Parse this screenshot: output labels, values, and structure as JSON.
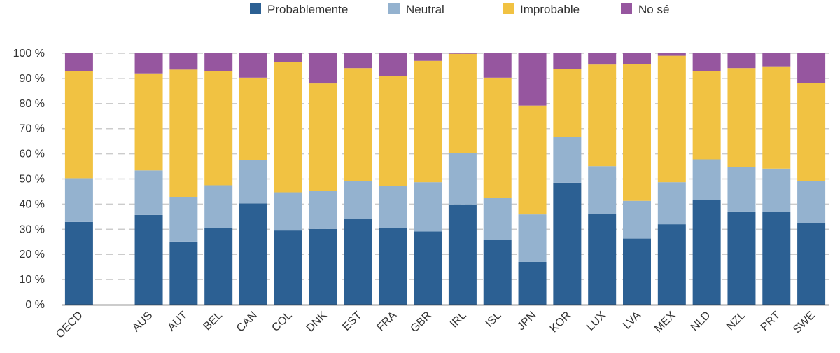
{
  "chart_data": {
    "type": "bar",
    "stacked": true,
    "categories": [
      "OECD",
      "",
      "AUS",
      "AUT",
      "BEL",
      "CAN",
      "COL",
      "DNK",
      "EST",
      "FRA",
      "GBR",
      "IRL",
      "ISL",
      "JPN",
      "KOR",
      "LUX",
      "LVA",
      "MEX",
      "NLD",
      "NZL",
      "PRT",
      "SWE"
    ],
    "series": [
      {
        "name": "Probablemente",
        "color": "#2c6093",
        "values": [
          32.9,
          null,
          35.7,
          25.1,
          30.5,
          40.3,
          29.5,
          30.1,
          34.2,
          30.6,
          29.1,
          39.9,
          25.9,
          17.0,
          48.5,
          36.2,
          26.3,
          32.0,
          41.6,
          37.1,
          36.8,
          32.4
        ]
      },
      {
        "name": "Neutral",
        "color": "#94b2cf",
        "values": [
          17.4,
          null,
          17.7,
          17.8,
          17.0,
          17.3,
          15.2,
          15.1,
          15.1,
          16.5,
          19.6,
          20.4,
          16.5,
          18.9,
          18.2,
          18.9,
          15.0,
          16.7,
          16.2,
          17.5,
          17.3,
          16.7
        ]
      },
      {
        "name": "Improbable",
        "color": "#f1c242",
        "values": [
          42.7,
          null,
          38.6,
          50.6,
          45.4,
          32.7,
          51.8,
          42.8,
          44.8,
          43.8,
          48.3,
          39.5,
          47.9,
          43.3,
          26.9,
          40.4,
          54.5,
          50.3,
          35.2,
          39.5,
          40.7,
          39.0
        ]
      },
      {
        "name": "No sé",
        "color": "#96569f",
        "values": [
          7.0,
          null,
          8.0,
          6.5,
          7.1,
          9.7,
          3.5,
          12.0,
          5.9,
          9.1,
          3.0,
          0.2,
          9.7,
          20.8,
          6.4,
          4.5,
          4.2,
          1.0,
          7.0,
          5.9,
          5.2,
          11.9
        ]
      }
    ],
    "ylim": [
      0,
      100
    ],
    "yticks": [
      "0 %",
      "10 %",
      "20 %",
      "30 %",
      "40 %",
      "50 %",
      "60 %",
      "70 %",
      "80 %",
      "90 %",
      "100 %"
    ],
    "ytick_values": [
      0,
      10,
      20,
      30,
      40,
      50,
      60,
      70,
      80,
      90,
      100
    ],
    "legend_position": "top-center",
    "grid": true,
    "title": "",
    "xlabel": "",
    "ylabel": ""
  }
}
